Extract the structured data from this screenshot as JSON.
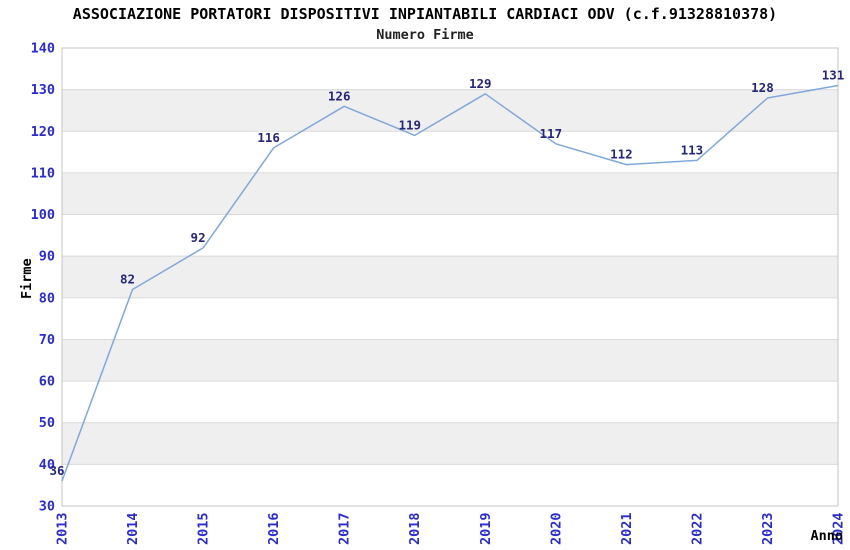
{
  "header": {
    "title": "ASSOCIAZIONE PORTATORI DISPOSITIVI INPIANTABILI CARDIACI ODV (c.f.91328810378)",
    "subtitle": "Numero Firme"
  },
  "chart_data": {
    "type": "line",
    "title": "ASSOCIAZIONE PORTATORI DISPOSITIVI INPIANTABILI CARDIACI ODV (c.f.91328810378)",
    "subtitle": "Numero Firme",
    "xlabel": "Anno",
    "ylabel": "Firme",
    "categories": [
      "2013",
      "2014",
      "2015",
      "2016",
      "2017",
      "2018",
      "2019",
      "2020",
      "2021",
      "2022",
      "2023",
      "2024"
    ],
    "series": [
      {
        "name": "Numero Firme",
        "values": [
          36,
          82,
          92,
          116,
          126,
          119,
          129,
          117,
          112,
          113,
          128,
          131
        ]
      }
    ],
    "point_labels": [
      "36",
      "82",
      "92",
      "116",
      "126",
      "119",
      "129",
      "117",
      "112",
      "113",
      "128",
      "131"
    ],
    "ylim": [
      30,
      140
    ],
    "y_ticks": [
      30,
      40,
      50,
      60,
      70,
      80,
      90,
      100,
      110,
      120,
      130,
      140
    ],
    "grid": "alternating-horizontal-bands",
    "band_ranges": [
      [
        40,
        50
      ],
      [
        60,
        70
      ],
      [
        80,
        90
      ],
      [
        100,
        110
      ],
      [
        120,
        130
      ]
    ],
    "legend": "none",
    "colors": {
      "line": "#7fa8dc",
      "point_label": "#26267f",
      "tick_label": "#2b2bd5",
      "axis_title": "#000000",
      "band_fill": "#efefef",
      "gridline": "#dadada",
      "plot_border": "#c4c4c4",
      "background": "#ffffff"
    }
  }
}
